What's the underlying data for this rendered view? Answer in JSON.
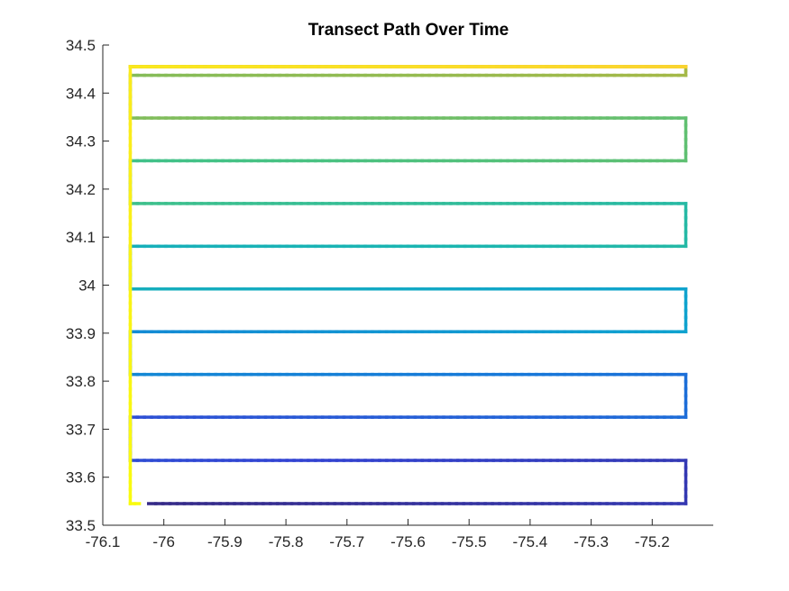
{
  "chart_data": {
    "type": "line",
    "title": "Transect Path Over Time",
    "xlabel": "",
    "ylabel": "",
    "xlim": [
      -76.1,
      -75.1
    ],
    "ylim": [
      33.5,
      34.5
    ],
    "xticks": [
      -76.1,
      -76.0,
      -75.9,
      -75.8,
      -75.7,
      -75.6,
      -75.5,
      -75.4,
      -75.3,
      -75.2
    ],
    "xtick_labels": [
      "-76.1",
      "-76",
      "-75.9",
      "-75.8",
      "-75.7",
      "-75.6",
      "-75.5",
      "-75.4",
      "-75.3",
      "-75.2"
    ],
    "yticks": [
      33.5,
      33.6,
      33.7,
      33.8,
      33.9,
      34.0,
      34.1,
      34.2,
      34.3,
      34.4,
      34.5
    ],
    "ytick_labels": [
      "33.5",
      "33.6",
      "33.7",
      "33.8",
      "33.9",
      "34",
      "34.1",
      "34.2",
      "34.3",
      "34.4",
      "34.5"
    ],
    "grid": false,
    "colormap": [
      "#352a87",
      "#3344d3",
      "#1778d9",
      "#0fa2cf",
      "#1bb6b0",
      "#45c285",
      "#7ebd5d",
      "#b6b73e",
      "#e2b93a",
      "#fbd52e",
      "#f9fb0e"
    ],
    "path": {
      "x": [
        -76.025,
        -75.145,
        -75.145,
        -76.055,
        -76.055,
        -75.145,
        -75.145,
        -76.055,
        -76.055,
        -75.145,
        -75.145,
        -76.055,
        -76.055,
        -75.145,
        -75.145,
        -76.055,
        -76.055,
        -75.145,
        -75.145,
        -76.055,
        -76.055,
        -75.145,
        -75.145,
        -76.055,
        -76.055,
        -75.145,
        -75.145,
        -76.055,
        -76.055,
        -75.145,
        -75.145,
        -76.055,
        -76.055,
        -76.055,
        -76.04
      ],
      "y": [
        33.545,
        33.545,
        33.635,
        33.635,
        33.725,
        33.725,
        33.814,
        33.814,
        33.903,
        33.903,
        33.992,
        33.992,
        34.081,
        34.081,
        34.17,
        34.17,
        34.259,
        34.259,
        34.348,
        34.348,
        34.437,
        34.437,
        34.455,
        34.455,
        34.455,
        34.455,
        34.455,
        34.455,
        34.455,
        34.455,
        34.455,
        34.455,
        34.455,
        33.545,
        33.545
      ]
    }
  }
}
